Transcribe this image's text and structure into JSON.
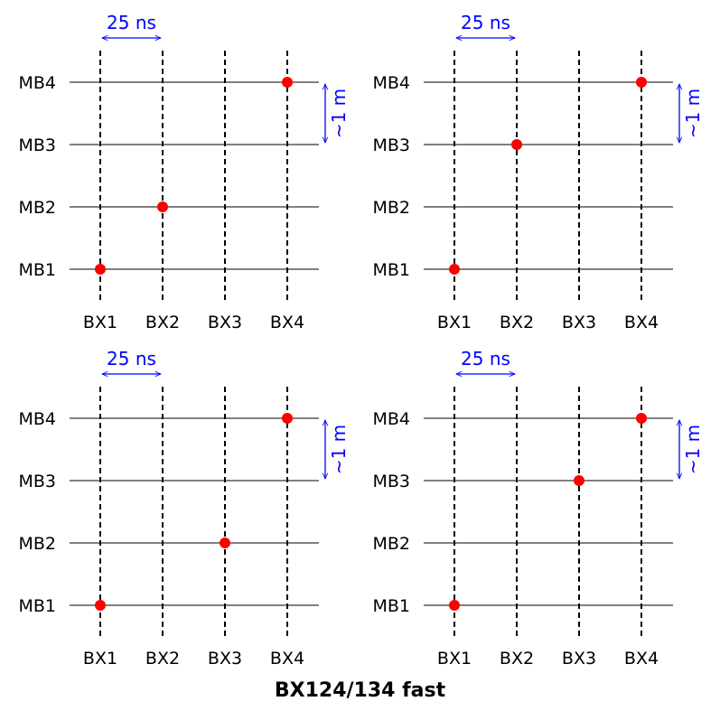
{
  "figure": {
    "title": "BX124/134 fast",
    "bunch_crossings": [
      "BX1",
      "BX2",
      "BX3",
      "BX4"
    ],
    "stations": [
      "MB1",
      "MB2",
      "MB3",
      "MB4"
    ],
    "spacing_label": "25 ns",
    "distance_label": "~1 m",
    "colors": {
      "axis": "#000000",
      "annotation": "#0000ff",
      "hit": "#ff0000"
    },
    "panels": [
      {
        "name": "top-left",
        "hits": [
          [
            "BX1",
            "MB1"
          ],
          [
            "BX2",
            "MB2"
          ],
          [
            "BX4",
            "MB4"
          ]
        ]
      },
      {
        "name": "top-right",
        "hits": [
          [
            "BX1",
            "MB1"
          ],
          [
            "BX2",
            "MB3"
          ],
          [
            "BX4",
            "MB4"
          ]
        ]
      },
      {
        "name": "bottom-left",
        "hits": [
          [
            "BX1",
            "MB1"
          ],
          [
            "BX3",
            "MB2"
          ],
          [
            "BX4",
            "MB4"
          ]
        ]
      },
      {
        "name": "bottom-right",
        "hits": [
          [
            "BX1",
            "MB1"
          ],
          [
            "BX3",
            "MB3"
          ],
          [
            "BX4",
            "MB4"
          ]
        ]
      }
    ]
  }
}
